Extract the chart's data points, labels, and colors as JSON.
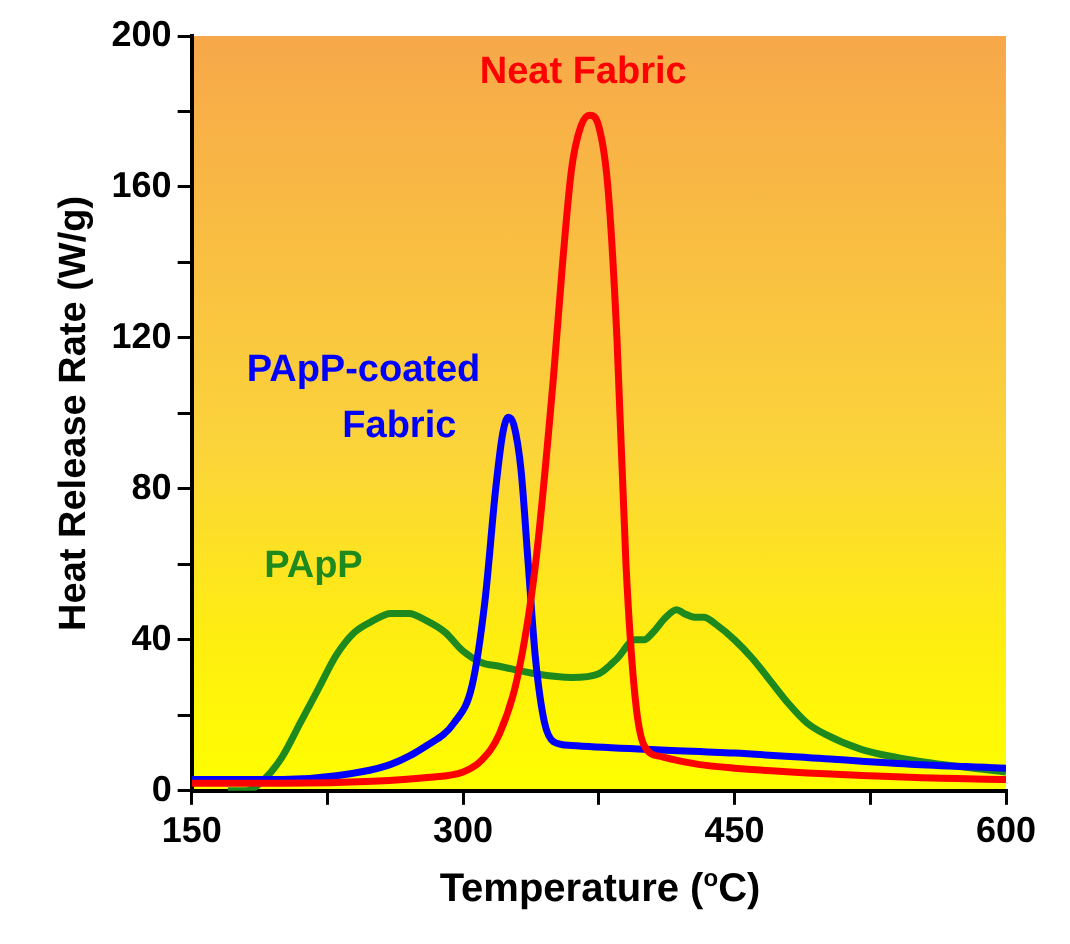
{
  "chart_data": {
    "type": "line",
    "xlabel": "Temperature ($^{o}$C)",
    "ylabel": "Heat Release Rate (W/g)",
    "xlim": [
      150,
      600
    ],
    "xticks": [
      150,
      {
        "value": 225,
        "label": null
      },
      300,
      {
        "value": 375,
        "label": null
      },
      450,
      {
        "value": 525,
        "label": null
      },
      600
    ],
    "ylim": [
      0,
      200
    ],
    "yticks": [
      0,
      {
        "value": 20,
        "label": null
      },
      40,
      {
        "value": 60,
        "label": null
      },
      80,
      {
        "value": 100,
        "label": null
      },
      120,
      {
        "value": 140,
        "label": null
      },
      160,
      {
        "value": 180,
        "label": null
      },
      200
    ],
    "grid": false,
    "legend": false,
    "marker": "none",
    "line_style": "solid",
    "series": [
      {
        "name": "Neat Fabric",
        "color": "#ff0000",
        "x": [
          150,
          200,
          250,
          280,
          300,
          310,
          320,
          330,
          340,
          350,
          355,
          360,
          365,
          370,
          375,
          380,
          385,
          390,
          395,
          400,
          410,
          430,
          450,
          500,
          550,
          600
        ],
        "values": [
          2,
          2,
          2.5,
          3.5,
          5,
          8,
          15,
          30,
          60,
          110,
          140,
          165,
          176,
          179,
          176,
          160,
          120,
          60,
          25,
          12,
          9,
          7,
          6,
          4.5,
          3.5,
          3
        ]
      },
      {
        "name": "PApP-coated Fabric",
        "color": "#0000ff",
        "x": [
          150,
          200,
          230,
          260,
          280,
          295,
          305,
          312,
          318,
          322,
          325,
          328,
          332,
          336,
          340,
          345,
          350,
          360,
          400,
          450,
          500,
          550,
          600
        ],
        "values": [
          3,
          3,
          4,
          7,
          12,
          18,
          28,
          50,
          80,
          95,
          99,
          97,
          85,
          60,
          35,
          18,
          13,
          12,
          11,
          10,
          8.5,
          7,
          6
        ]
      },
      {
        "name": "PApP",
        "color": "#1e8a1e",
        "x": [
          170,
          180,
          190,
          200,
          210,
          220,
          230,
          240,
          250,
          260,
          270,
          280,
          290,
          300,
          310,
          320,
          340,
          360,
          375,
          385,
          395,
          400,
          405,
          412,
          418,
          422,
          428,
          433,
          440,
          450,
          460,
          470,
          480,
          490,
          500,
          520,
          550,
          600
        ],
        "values": [
          0,
          0,
          3,
          9,
          18,
          27,
          36,
          42,
          45,
          47,
          47,
          45,
          42,
          37,
          34,
          33,
          31,
          30,
          31,
          35,
          40,
          40,
          42,
          46,
          48,
          47,
          46,
          46,
          44,
          40,
          35,
          29,
          23,
          18,
          15,
          11,
          8,
          5
        ]
      }
    ]
  }
}
